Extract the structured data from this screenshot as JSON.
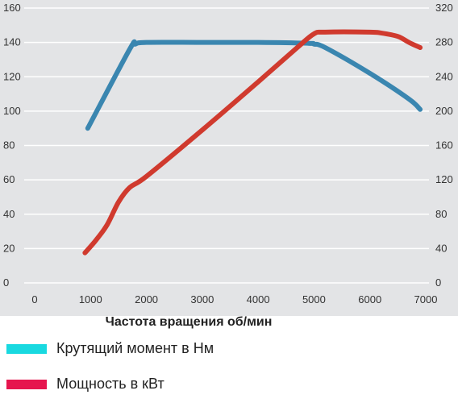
{
  "chart_data": {
    "type": "line",
    "title": "",
    "xlabel": "Частота вращения об/мин",
    "ylabel": "",
    "y2label": "",
    "xlim": [
      0,
      7000
    ],
    "ylim": [
      0,
      160
    ],
    "y2lim": [
      0,
      320
    ],
    "x_ticks": [
      "0",
      "1000",
      "2000",
      "3000",
      "4000",
      "5000",
      "6000",
      "7000"
    ],
    "y_ticks": [
      "0",
      "20",
      "40",
      "60",
      "80",
      "100",
      "120",
      "140",
      "160"
    ],
    "y2_ticks": [
      "0",
      "40",
      "80",
      "120",
      "160",
      "200",
      "240",
      "280",
      "320"
    ],
    "grid": "horizontal",
    "background": "#e3e4e6",
    "series": [
      {
        "name": "Крутящий момент в Нм",
        "axis": "left",
        "color": "#3a86b0",
        "legend_color": "#19d9e0",
        "x": [
          950,
          1700,
          1800,
          2000,
          3000,
          4000,
          4900,
          5000,
          5200,
          6000,
          6700,
          6900
        ],
        "y": [
          90,
          136,
          139,
          140,
          140,
          140,
          139.5,
          139,
          137,
          122,
          107,
          101
        ]
      },
      {
        "name": "Мощность в кВт",
        "axis": "right",
        "color": "#d03a2e",
        "legend_color": "#e6154e",
        "x": [
          900,
          1100,
          1300,
          1500,
          1700,
          2000,
          3000,
          4000,
          4700,
          5000,
          5200,
          6000,
          6200,
          6500,
          6700,
          6900
        ],
        "y": [
          35,
          50,
          68,
          94,
          111,
          124,
          178,
          234,
          274,
          290,
          292,
          292,
          291,
          287,
          280,
          274
        ]
      }
    ]
  }
}
